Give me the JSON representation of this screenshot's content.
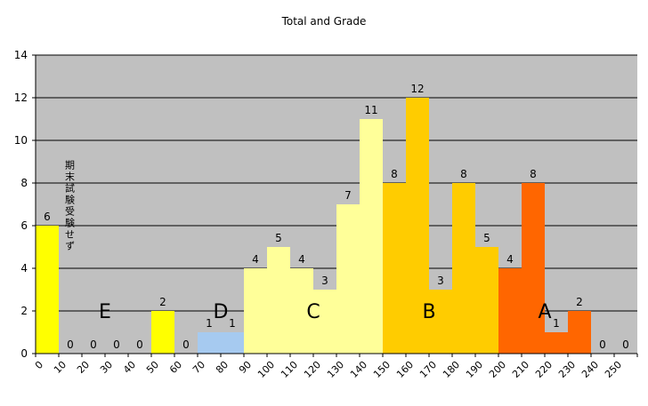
{
  "chart_data": {
    "type": "bar",
    "title": "Total and Grade",
    "xlabel": "",
    "ylabel": "",
    "ylim": [
      0,
      14
    ],
    "yticks": [
      0,
      2,
      4,
      6,
      8,
      10,
      12,
      14
    ],
    "grid": true,
    "legend": "none",
    "categories": [
      "0",
      "10",
      "20",
      "30",
      "40",
      "50",
      "60",
      "70",
      "80",
      "90",
      "100",
      "110",
      "120",
      "130",
      "140",
      "150",
      "160",
      "170",
      "180",
      "190",
      "200",
      "210",
      "220",
      "230",
      "240",
      "250"
    ],
    "values": [
      6,
      0,
      0,
      0,
      0,
      2,
      0,
      1,
      1,
      4,
      5,
      4,
      3,
      7,
      11,
      8,
      12,
      3,
      8,
      5,
      4,
      8,
      1,
      2,
      0,
      0
    ],
    "bar_colors": [
      "#ffff00",
      "#ffff00",
      "#ffff00",
      "#ffff00",
      "#ffff00",
      "#ffff00",
      "#a6caf0",
      "#a6caf0",
      "#a6caf0",
      "#ffff99",
      "#ffff99",
      "#ffff99",
      "#ffff99",
      "#ffff99",
      "#ffff99",
      "#ffcc00",
      "#ffcc00",
      "#ffcc00",
      "#ffcc00",
      "#ffcc00",
      "#ff6600",
      "#ff6600",
      "#ff6600",
      "#ff6600",
      "#ff6600",
      "#ff6600"
    ],
    "grade_labels": [
      {
        "text": "E",
        "category": "30"
      },
      {
        "text": "D",
        "category": "80"
      },
      {
        "text": "C",
        "category": "120"
      },
      {
        "text": "B",
        "category": "170"
      },
      {
        "text": "A",
        "category": "220"
      }
    ],
    "annotation": {
      "text": "期末試験受験せず",
      "category": "10"
    },
    "plot_background": "#c0c0c0"
  }
}
